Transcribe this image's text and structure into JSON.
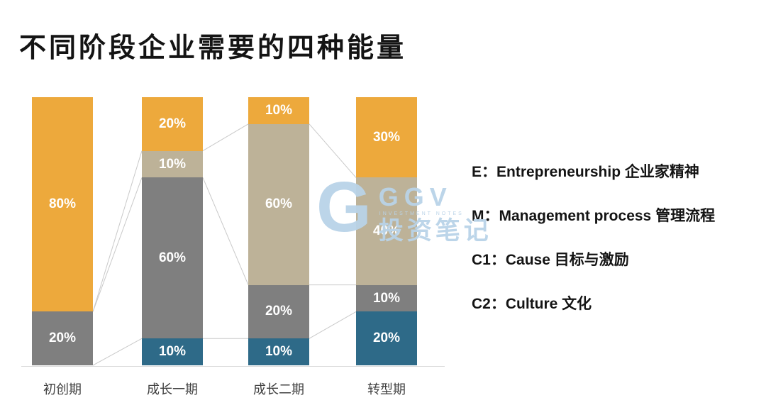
{
  "title": "不同阶段企业需要的四种能量",
  "legend": {
    "items": [
      {
        "key": "E",
        "text": "E：Entrepreneurship 企业家精神"
      },
      {
        "key": "M",
        "text": "M：Management process 管理流程"
      },
      {
        "key": "C1",
        "text": "C1：Cause 目标与激励"
      },
      {
        "key": "C2",
        "text": "C2：Culture 文化"
      }
    ]
  },
  "watermark": {
    "logo_letter": "G",
    "brand": "GGV",
    "subtext": "INVESTMENT NOTES",
    "brand_cn": "投资笔记",
    "color": "#B9D3E8"
  },
  "chart_data": {
    "type": "bar",
    "variant": "stacked-percent",
    "title": "不同阶段企业需要的四种能量",
    "categories": [
      "初创期",
      "成长一期",
      "成长二期",
      "转型期"
    ],
    "value_suffix": "%",
    "ylim": [
      0,
      100
    ],
    "grid": false,
    "legend_position": "right",
    "stack_order_bottom_to_top": [
      "C2",
      "C1",
      "M",
      "E"
    ],
    "series": [
      {
        "name": "E",
        "full_name": "Entrepreneurship 企业家精神",
        "color": "#EDA93C",
        "values": [
          80,
          20,
          10,
          30
        ]
      },
      {
        "name": "M",
        "full_name": "Management process 管理流程",
        "color": "#BDB298",
        "values": [
          0,
          10,
          60,
          40
        ]
      },
      {
        "name": "C1",
        "full_name": "Cause 目标与激励",
        "color": "#7F7F7F",
        "values": [
          20,
          60,
          20,
          10
        ]
      },
      {
        "name": "C2",
        "full_name": "Culture 文化",
        "color": "#2E6A88",
        "values": [
          0,
          10,
          10,
          20
        ]
      }
    ],
    "connector_lines": true,
    "connector_color": "#C9C9C9",
    "axis_line_color": "#D9D9D9",
    "segment_label_color": "#FFFFFF"
  }
}
